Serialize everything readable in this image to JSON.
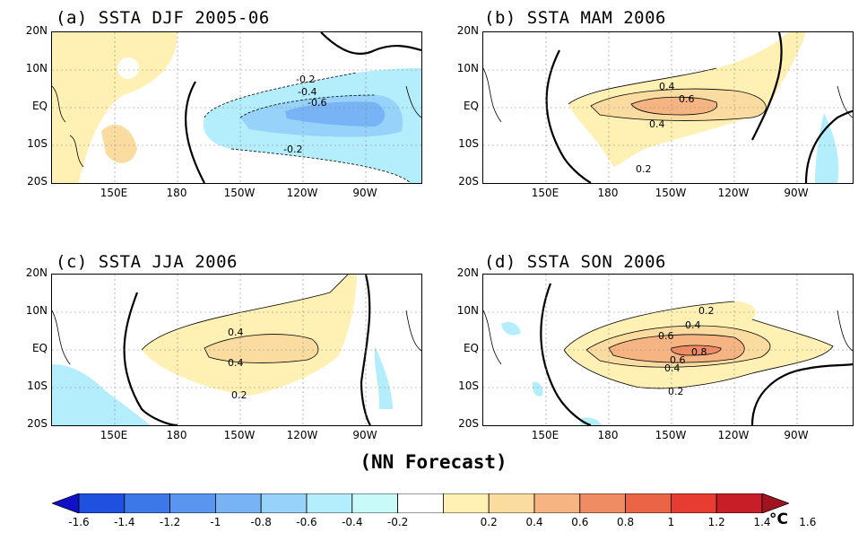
{
  "panels": [
    {
      "id": "a",
      "title": "(a) SSTA DJF 2005-06"
    },
    {
      "id": "b",
      "title": "(b) SSTA MAM 2006"
    },
    {
      "id": "c",
      "title": "(c) SSTA JJA 2006"
    },
    {
      "id": "d",
      "title": "(d) SSTA SON 2006"
    }
  ],
  "lat_labels": [
    "20N",
    "10N",
    "EQ",
    "10S",
    "20S"
  ],
  "lon_labels": [
    "150E",
    "180",
    "150W",
    "120W",
    "90W"
  ],
  "contour_labels": {
    "a": [
      "-0.2",
      "-0.4",
      "-0.6",
      "-0.2"
    ],
    "b": [
      "0.4",
      "0.6",
      "0.4",
      "0.2"
    ],
    "c": [
      "0.4",
      "0.4",
      "0.2"
    ],
    "d": [
      "0.2",
      "0.4",
      "0.6",
      "0.8",
      "0.6",
      "0.4",
      "0.2"
    ]
  },
  "footer_label": "(NN Forecast)",
  "colorbar": {
    "ticks": [
      "-1.6",
      "-1.4",
      "-1.2",
      "-1",
      "-0.8",
      "-0.6",
      "-0.4",
      "-0.2",
      "0.2",
      "0.4",
      "0.6",
      "0.8",
      "1",
      "1.2",
      "1.4",
      "1.6"
    ],
    "colors": [
      "#1010c8",
      "#2050e0",
      "#3c78e8",
      "#5a96f0",
      "#78b4f5",
      "#96d2fa",
      "#b4eefc",
      "#c8fafa",
      "#ffffff",
      "#fff0b4",
      "#fadca0",
      "#f5b482",
      "#f08c64",
      "#eb6446",
      "#e63c32",
      "#c81e28",
      "#a01420"
    ],
    "unit": "°C"
  }
}
